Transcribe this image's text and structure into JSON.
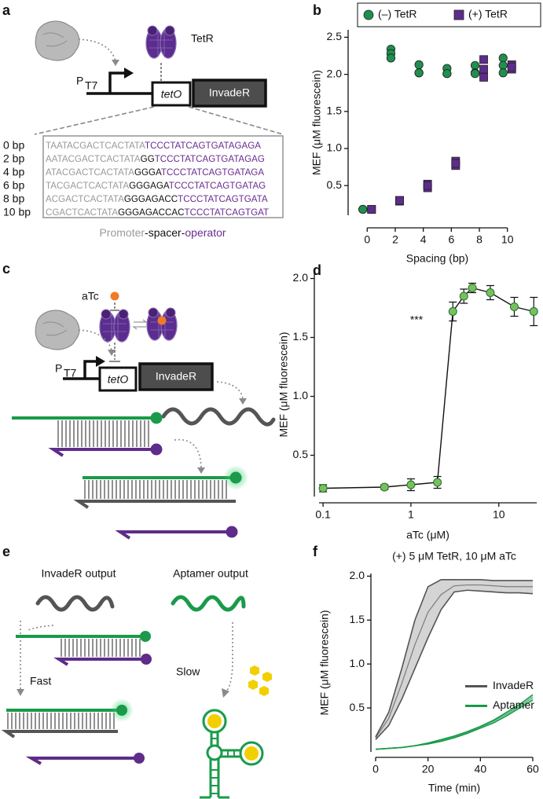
{
  "panel_a": {
    "label": "a",
    "protein": "TetR",
    "promoter_p": "P",
    "promoter_sub": "T7",
    "operator": "tetO",
    "gene": "InvadeR",
    "sequences": [
      {
        "spacing": "0 bp",
        "promoter": "TAATACGACTCACTATA",
        "operator": "TCCCTATCAGTGATAGAGA"
      },
      {
        "spacing": "2 bp",
        "promoter": "AATACGACTCACTATA",
        "spacer": "GG",
        "operator": "TCCCTATCAGTGATAGAG"
      },
      {
        "spacing": "4 bp",
        "promoter": "ATACGACTCACTATA",
        "spacer": "GGGA",
        "operator": "TCCCTATCAGTGATAGA"
      },
      {
        "spacing": "6 bp",
        "promoter": "TACGACTCACTATA",
        "spacer": "GGGAGA",
        "operator": "TCCCTATCAGTGATAG"
      },
      {
        "spacing": "8 bp",
        "promoter": "ACGACTCACTATA",
        "spacer": "GGGAGACC",
        "operator": "TCCCTATCAGTGATA"
      },
      {
        "spacing": "10 bp",
        "promoter": "CGACTCACTATA",
        "spacer": "GGGAGACCAC",
        "operator": "TCCCTATCAGTGAT"
      }
    ],
    "caption": {
      "promoter": "Promoter",
      "spacer": "-spacer-",
      "operator": "operator"
    }
  },
  "panel_c": {
    "label": "c",
    "inducer": "aTc",
    "promoter_p": "P",
    "promoter_sub": "T7",
    "operator": "tetO",
    "gene": "InvadeR"
  },
  "panel_e": {
    "label": "e",
    "left_title": "InvadeR output",
    "right_title": "Aptamer output",
    "left_speed": "Fast",
    "right_speed": "Slow"
  },
  "chart_data": [
    {
      "type": "scatter",
      "panel_label": "b",
      "xlabel": "Spacing (bp)",
      "ylabel": "MEF (μM fluorescein)",
      "xlim": [
        -0.8,
        10.8
      ],
      "xticks": [
        0,
        2,
        4,
        6,
        8,
        10
      ],
      "ylim": [
        0.1,
        2.6
      ],
      "yticks": [
        0.5,
        {
          "value": 1,
          "label": "1.0"
        },
        1.5,
        {
          "value": 2,
          "label": "2.0"
        },
        2.5
      ],
      "legend": "top",
      "series": [
        {
          "name": "(–) TetR",
          "color": "#1f8f4f",
          "marker": "circle",
          "x": [
            0,
            0,
            0,
            2,
            2,
            2,
            4,
            4,
            4,
            6,
            6,
            6,
            8,
            8,
            8,
            10,
            10,
            10
          ],
          "values": [
            0.18,
            0.18,
            0.18,
            2.34,
            2.28,
            2.22,
            2.13,
            2.02,
            2.02,
            2.08,
            2.01,
            2.01,
            2.12,
            2.02,
            2.01,
            2.22,
            2.12,
            2.02
          ]
        },
        {
          "name": "(+) TetR",
          "color": "#5e2c8a",
          "marker": "square",
          "x": [
            0,
            0,
            0,
            2,
            2,
            2,
            4,
            4,
            4,
            6,
            6,
            6,
            8,
            8,
            8,
            10,
            10,
            10
          ],
          "values": [
            0.18,
            0.18,
            0.18,
            0.29,
            0.3,
            0.3,
            0.52,
            0.47,
            0.5,
            0.83,
            0.77,
            0.8,
            2.2,
            2.07,
            1.96,
            2.13,
            2.07,
            2.1
          ]
        }
      ]
    },
    {
      "type": "line",
      "panel_label": "d",
      "xlabel": "aTc (μM)",
      "ylabel": "MEF (μM fluorescein)",
      "xscale": "log",
      "xlim": [
        0.09,
        27
      ],
      "xticks": [
        0.1,
        1,
        10
      ],
      "ylim": [
        0.15,
        2.05
      ],
      "yticks": [
        0.5,
        {
          "value": 1,
          "label": "1.0"
        },
        1.5,
        {
          "value": 2,
          "label": "2.0"
        }
      ],
      "annotation": "***",
      "color": "#74c25c",
      "line_color": "#111111",
      "x": [
        0.1,
        0.5,
        1,
        2,
        3,
        4,
        5,
        8,
        15,
        25
      ],
      "values": [
        0.22,
        0.23,
        0.25,
        0.27,
        1.72,
        1.85,
        1.92,
        1.88,
        1.76,
        1.72
      ],
      "errors": [
        0.03,
        0.02,
        0.05,
        0.05,
        0.08,
        0.06,
        0.04,
        0.06,
        0.08,
        0.12
      ]
    },
    {
      "type": "line",
      "panel_label": "f",
      "title": "(+) 5 μM TetR, 10 μM aTc",
      "xlabel": "Time (min)",
      "ylabel": "MEF (μM fluorescein)",
      "xlim": [
        0,
        60
      ],
      "xticks": [
        0,
        20,
        40,
        60
      ],
      "ylim": [
        0,
        2.03
      ],
      "yticks": [
        0.5,
        {
          "value": 1,
          "label": "1.0"
        },
        1.5,
        {
          "value": 2,
          "label": "2.0"
        }
      ],
      "legend": "center right",
      "x": [
        0,
        5,
        10,
        15,
        20,
        25,
        30,
        35,
        40,
        45,
        50,
        55,
        60
      ],
      "series": [
        {
          "name": "InvadeR",
          "color": "#555555",
          "band_color": "#d4d4d4",
          "values": [
            0.16,
            0.38,
            0.78,
            1.22,
            1.59,
            1.79,
            1.89,
            1.9,
            1.9,
            1.89,
            1.88,
            1.88,
            1.88
          ],
          "lower": [
            0.14,
            0.3,
            0.6,
            0.95,
            1.3,
            1.62,
            1.82,
            1.84,
            1.83,
            1.82,
            1.81,
            1.81,
            1.8
          ],
          "upper": [
            0.17,
            0.45,
            0.95,
            1.5,
            1.88,
            1.96,
            1.96,
            1.96,
            1.96,
            1.95,
            1.95,
            1.95,
            1.95
          ]
        },
        {
          "name": "Aptamer",
          "color": "#1a9a4a",
          "band_color": "#bfe5cb",
          "values": [
            0.03,
            0.04,
            0.05,
            0.07,
            0.1,
            0.13,
            0.17,
            0.22,
            0.28,
            0.35,
            0.43,
            0.52,
            0.62
          ],
          "lower": [
            0.03,
            0.04,
            0.05,
            0.07,
            0.09,
            0.12,
            0.16,
            0.21,
            0.27,
            0.33,
            0.41,
            0.5,
            0.59
          ],
          "upper": [
            0.03,
            0.04,
            0.05,
            0.07,
            0.1,
            0.14,
            0.18,
            0.23,
            0.29,
            0.36,
            0.45,
            0.54,
            0.65
          ]
        }
      ]
    }
  ]
}
